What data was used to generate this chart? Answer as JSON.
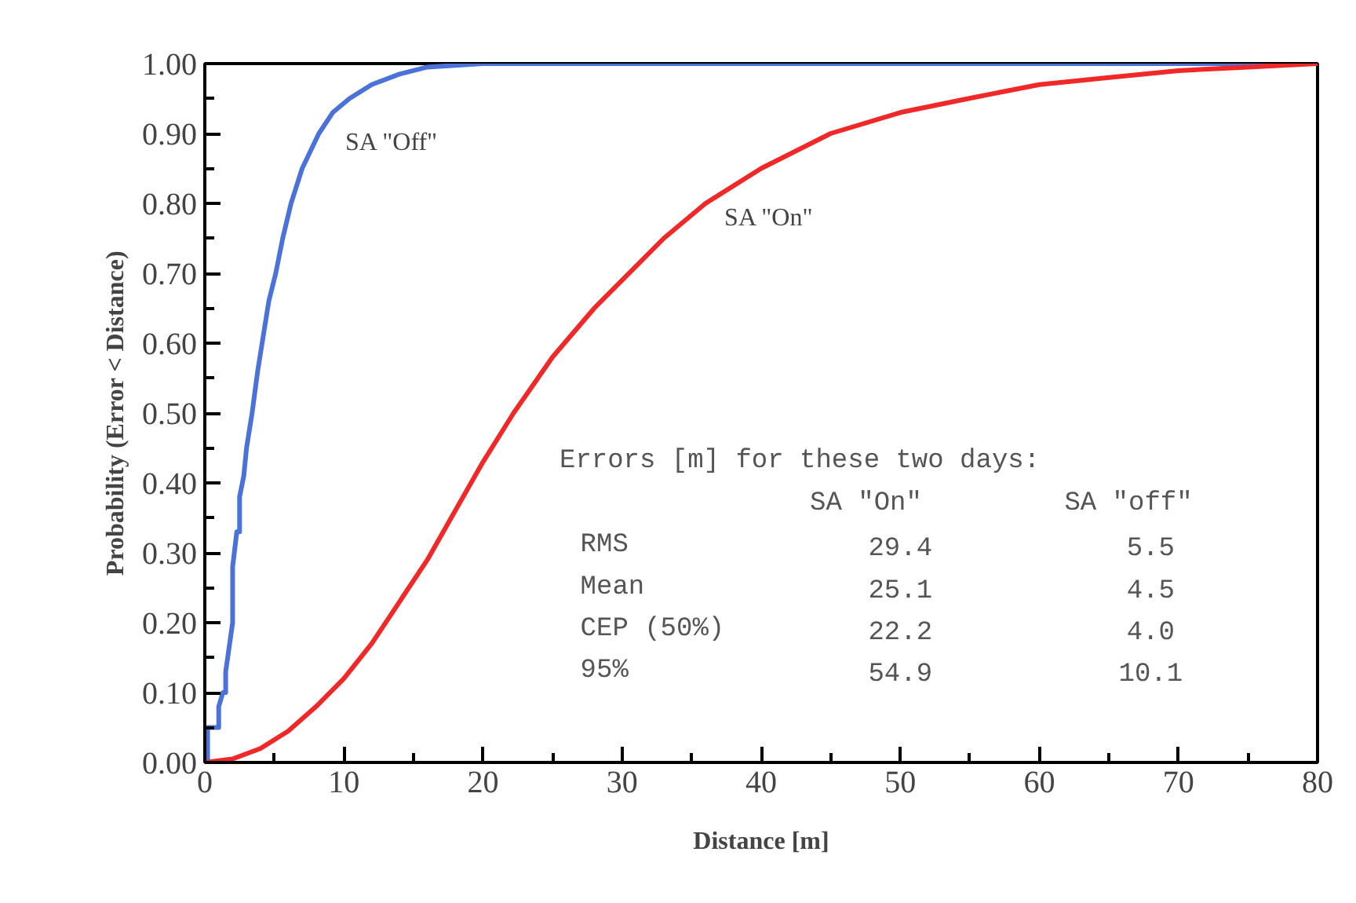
{
  "chart_data": {
    "type": "line",
    "xlabel": "Distance [m]",
    "ylabel": "Probability (Error < Distance)",
    "xlim": [
      0,
      80
    ],
    "ylim": [
      0,
      1
    ],
    "xticks": [
      0,
      {
        "value": 5,
        "label": null
      },
      10,
      {
        "value": 15,
        "label": null
      },
      20,
      {
        "value": 25,
        "label": null
      },
      30,
      {
        "value": 35,
        "label": null
      },
      40,
      {
        "value": 45,
        "label": null
      },
      50,
      {
        "value": 55,
        "label": null
      },
      60,
      {
        "value": 65,
        "label": null
      },
      70,
      {
        "value": 75,
        "label": null
      },
      80
    ],
    "yticks": [
      {
        "value": 0,
        "label": "0.00"
      },
      {
        "value": 0.05,
        "label": null
      },
      {
        "value": 0.1,
        "label": "0.10"
      },
      {
        "value": 0.15,
        "label": null
      },
      {
        "value": 0.2,
        "label": "0.20"
      },
      {
        "value": 0.25,
        "label": null
      },
      {
        "value": 0.3,
        "label": "0.30"
      },
      {
        "value": 0.35,
        "label": null
      },
      {
        "value": 0.4,
        "label": "0.40"
      },
      {
        "value": 0.45,
        "label": null
      },
      {
        "value": 0.5,
        "label": "0.50"
      },
      {
        "value": 0.55,
        "label": null
      },
      {
        "value": 0.6,
        "label": "0.60"
      },
      {
        "value": 0.65,
        "label": null
      },
      {
        "value": 0.7,
        "label": "0.70"
      },
      {
        "value": 0.75,
        "label": null
      },
      {
        "value": 0.8,
        "label": "0.80"
      },
      {
        "value": 0.85,
        "label": null
      },
      {
        "value": 0.9,
        "label": "0.90"
      },
      {
        "value": 0.95,
        "label": null
      },
      {
        "value": 1,
        "label": "1.00"
      }
    ],
    "grid": false,
    "legend": false,
    "marker": "none",
    "line_style": "solid",
    "series": [
      {
        "name": "SA \"Off\"",
        "color": "#4a72d8",
        "x": [
          0,
          0.2,
          0.2,
          1,
          1,
          1.3,
          1.5,
          1.5,
          2,
          2,
          2.3,
          2.5,
          2.5,
          2.8,
          3,
          3.4,
          3.8,
          4.2,
          4.6,
          5.1,
          5.6,
          6.2,
          7,
          8.2,
          9.2,
          10.4,
          12,
          14,
          16,
          20,
          35,
          80
        ],
        "values": [
          0,
          0,
          0.05,
          0.05,
          0.08,
          0.1,
          0.1,
          0.13,
          0.2,
          0.28,
          0.33,
          0.33,
          0.38,
          0.41,
          0.45,
          0.5,
          0.56,
          0.61,
          0.66,
          0.7,
          0.75,
          0.8,
          0.85,
          0.9,
          0.93,
          0.95,
          0.97,
          0.985,
          0.995,
          1,
          1,
          1
        ]
      },
      {
        "name": "SA \"On\"",
        "color": "#f02828",
        "x": [
          0,
          2,
          4,
          6,
          8,
          10,
          12,
          14,
          16,
          18,
          20,
          22.2,
          25,
          28,
          30,
          33,
          36,
          40,
          45,
          50,
          54.9,
          60,
          65,
          70,
          75,
          80
        ],
        "values": [
          0,
          0.005,
          0.02,
          0.045,
          0.08,
          0.12,
          0.17,
          0.23,
          0.29,
          0.36,
          0.43,
          0.5,
          0.58,
          0.65,
          0.69,
          0.75,
          0.8,
          0.85,
          0.9,
          0.93,
          0.95,
          0.97,
          0.98,
          0.99,
          0.995,
          1
        ]
      }
    ],
    "annotations": [
      "Errors [m] for these two days:",
      "SA \"On\"",
      "SA \"off\"",
      "RMS",
      "29.4",
      "5.5",
      "Mean",
      "25.1",
      "4.5",
      "CEP (50%)",
      "22.2",
      "4.0",
      "95%",
      "54.9",
      "10.1"
    ]
  }
}
